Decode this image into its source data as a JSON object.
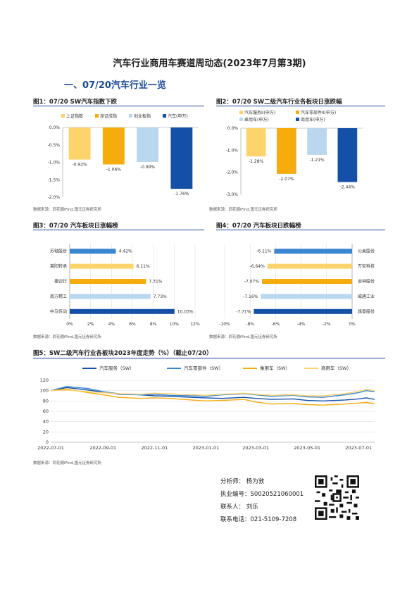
{
  "page": {
    "title": "汽车行业商用车赛道周动态(2023年7月第3期)",
    "section_title": "一、07/20汽车行业一览"
  },
  "figures": [
    {
      "title": "图1：07/20 SW汽车指数下跌",
      "source": "数据来源：同花顺iFind,国元证券研究所"
    },
    {
      "title": "图2：07/20 SW二级汽车行业各板块日涨跌幅",
      "source": "数据来源：同花顺iFind,国元证券研究所"
    },
    {
      "title": "图3：07/20 汽车板块日涨幅榜",
      "source": "数据来源：同花顺iFind,国元证券研究所"
    },
    {
      "title": "图4：07/20 汽车板块日跌幅榜",
      "source": "数据来源：同花顺iFind,国元证券研究所"
    },
    {
      "title": "图5：SW二级汽车行业各板块2023年度走势（%）（截止07/20）",
      "source": "数据来源：同花顺iFind,国元证券研究所"
    }
  ],
  "contact": {
    "analyst": "分析师：   杨为敩",
    "license": "执业编号：S0020521060001",
    "liaison": "联系人：   刘乐",
    "phone": "联系电话：021-5109-7208"
  },
  "chart_data": [
    {
      "type": "bar",
      "categories": [
        "上证指数",
        "深证成指",
        "创业板指",
        "汽车(申万)"
      ],
      "values": [
        -0.92,
        -1.06,
        -0.99,
        -1.76
      ],
      "value_labels": [
        "-0.92%",
        "-1.06%",
        "-0.99%",
        "-1.76%"
      ],
      "colors": [
        "#fdd36b",
        "#f5ac0c",
        "#b9d7ef",
        "#1550a8"
      ],
      "ylim": [
        -2.0,
        0.0
      ],
      "yticks": [
        "0.0%",
        "-0.5%",
        "-1.0%",
        "-1.5%",
        "-2.0%"
      ],
      "legend_position": "top"
    },
    {
      "type": "bar",
      "categories": [
        "汽车服务II(申万)",
        "汽车零部件II(申万)",
        "乘用车(申万)",
        "商用车(申万)"
      ],
      "values": [
        -1.28,
        -2.07,
        -1.21,
        -2.44
      ],
      "value_labels": [
        "-1.28%",
        "-2.07%",
        "-1.21%",
        "-2.44%"
      ],
      "colors": [
        "#fdd36b",
        "#f5ac0c",
        "#b9d7ef",
        "#1550a8"
      ],
      "ylim": [
        -3.0,
        0.0
      ],
      "yticks": [
        "0.0%",
        "-1.0%",
        "-2.0%",
        "-3.0%"
      ],
      "legend_position": "top"
    },
    {
      "type": "bar",
      "orientation": "horizontal",
      "categories": [
        "苏轴股份",
        "莱阳转承",
        "捷迈行",
        "南方精工",
        "中马传动"
      ],
      "values": [
        4.42,
        6.11,
        7.31,
        7.73,
        10.03
      ],
      "value_labels": [
        "4.42%",
        "6.11%",
        "7.31%",
        "7.73%",
        "10.03%"
      ],
      "colors": [
        "#3a86d1",
        "#fdd36b",
        "#f5ac0c",
        "#b9d7ef",
        "#1550a8"
      ],
      "xlim": [
        0,
        12
      ],
      "xticks": [
        "0%",
        "2%",
        "4%",
        "6%",
        "8%",
        "10%",
        "12%"
      ]
    },
    {
      "type": "bar",
      "orientation": "horizontal",
      "categories": [
        "公美股份",
        "万安科技",
        "金钟股份",
        "威唐工业",
        "旗泰股份"
      ],
      "values": [
        -6.11,
        -6.64,
        -7.07,
        -7.16,
        -7.71
      ],
      "value_labels": [
        "-6.11%",
        "-6.64%",
        "-7.07%",
        "-7.16%",
        "-7.71%"
      ],
      "colors": [
        "#3a86d1",
        "#fdd36b",
        "#f5ac0c",
        "#b9d7ef",
        "#1550a8"
      ],
      "xlim": [
        -10,
        0
      ],
      "xticks": [
        "-10%",
        "-8%",
        "-6%",
        "-4%",
        "-2%",
        "0%"
      ]
    },
    {
      "type": "line",
      "x_start": "2022-07-01",
      "x_end": "2023-07-20",
      "xticks": [
        "2022-07-01",
        "2022-09-01",
        "2022-11-01",
        "2023-01-01",
        "2023-03-01",
        "2023-05-01",
        "2023-07-01"
      ],
      "ylim": [
        0,
        120
      ],
      "yticks": [
        "0",
        "20",
        "40",
        "60",
        "80",
        "100",
        "120"
      ],
      "legend_position": "top",
      "series": [
        {
          "name": "汽车服务（SW）",
          "color": "#1550a8",
          "points": [
            [
              "2022-07-01",
              100
            ],
            [
              "2022-07-20",
              106
            ],
            [
              "2022-08-15",
              101
            ],
            [
              "2022-09-01",
              97
            ],
            [
              "2022-09-20",
              93
            ],
            [
              "2022-10-15",
              92
            ],
            [
              "2022-11-01",
              90
            ],
            [
              "2022-11-20",
              89
            ],
            [
              "2022-12-15",
              87
            ],
            [
              "2023-01-01",
              86
            ],
            [
              "2023-01-20",
              85
            ],
            [
              "2023-02-15",
              87
            ],
            [
              "2023-03-01",
              85
            ],
            [
              "2023-03-20",
              83
            ],
            [
              "2023-04-15",
              84
            ],
            [
              "2023-05-01",
              81
            ],
            [
              "2023-05-20",
              80
            ],
            [
              "2023-06-15",
              82
            ],
            [
              "2023-07-01",
              84
            ],
            [
              "2023-07-10",
              86
            ],
            [
              "2023-07-20",
              83
            ]
          ]
        },
        {
          "name": "汽车零部件（SW）",
          "color": "#3a86d1",
          "points": [
            [
              "2022-07-01",
              100
            ],
            [
              "2022-07-20",
              108
            ],
            [
              "2022-08-15",
              104
            ],
            [
              "2022-09-01",
              98
            ],
            [
              "2022-09-20",
              94
            ],
            [
              "2022-10-15",
              92
            ],
            [
              "2022-11-01",
              93
            ],
            [
              "2022-11-20",
              91
            ],
            [
              "2022-12-15",
              90
            ],
            [
              "2023-01-01",
              89
            ],
            [
              "2023-01-20",
              92
            ],
            [
              "2023-02-15",
              94
            ],
            [
              "2023-03-01",
              92
            ],
            [
              "2023-03-20",
              89
            ],
            [
              "2023-04-15",
              91
            ],
            [
              "2023-05-01",
              88
            ],
            [
              "2023-05-20",
              87
            ],
            [
              "2023-06-15",
              92
            ],
            [
              "2023-07-01",
              96
            ],
            [
              "2023-07-10",
              100
            ],
            [
              "2023-07-20",
              98
            ]
          ]
        },
        {
          "name": "乘用车（SW）",
          "color": "#f5ac0c",
          "points": [
            [
              "2022-07-01",
              100
            ],
            [
              "2022-07-20",
              103
            ],
            [
              "2022-08-15",
              96
            ],
            [
              "2022-09-01",
              92
            ],
            [
              "2022-09-20",
              87
            ],
            [
              "2022-10-15",
              85
            ],
            [
              "2022-11-01",
              86
            ],
            [
              "2022-11-20",
              85
            ],
            [
              "2022-12-15",
              82
            ],
            [
              "2023-01-01",
              80
            ],
            [
              "2023-01-20",
              81
            ],
            [
              "2023-02-15",
              83
            ],
            [
              "2023-03-01",
              78
            ],
            [
              "2023-03-20",
              74
            ],
            [
              "2023-04-15",
              75
            ],
            [
              "2023-05-01",
              73
            ],
            [
              "2023-05-20",
              72
            ],
            [
              "2023-06-15",
              74
            ],
            [
              "2023-07-01",
              76
            ],
            [
              "2023-07-10",
              77
            ],
            [
              "2023-07-20",
              75
            ]
          ]
        },
        {
          "name": "商用车（SW）",
          "color": "#fdd36b",
          "points": [
            [
              "2022-07-01",
              100
            ],
            [
              "2022-07-20",
              101
            ],
            [
              "2022-08-15",
              98
            ],
            [
              "2022-09-01",
              96
            ],
            [
              "2022-09-20",
              94
            ],
            [
              "2022-10-15",
              93
            ],
            [
              "2022-11-01",
              95
            ],
            [
              "2022-11-20",
              94
            ],
            [
              "2022-12-15",
              92
            ],
            [
              "2023-01-01",
              91
            ],
            [
              "2023-01-20",
              93
            ],
            [
              "2023-02-15",
              95
            ],
            [
              "2023-03-01",
              93
            ],
            [
              "2023-03-20",
              91
            ],
            [
              "2023-04-15",
              92
            ],
            [
              "2023-05-01",
              90
            ],
            [
              "2023-05-20",
              90
            ],
            [
              "2023-06-15",
              94
            ],
            [
              "2023-07-01",
              99
            ],
            [
              "2023-07-10",
              102
            ],
            [
              "2023-07-20",
              100
            ]
          ]
        }
      ]
    }
  ]
}
